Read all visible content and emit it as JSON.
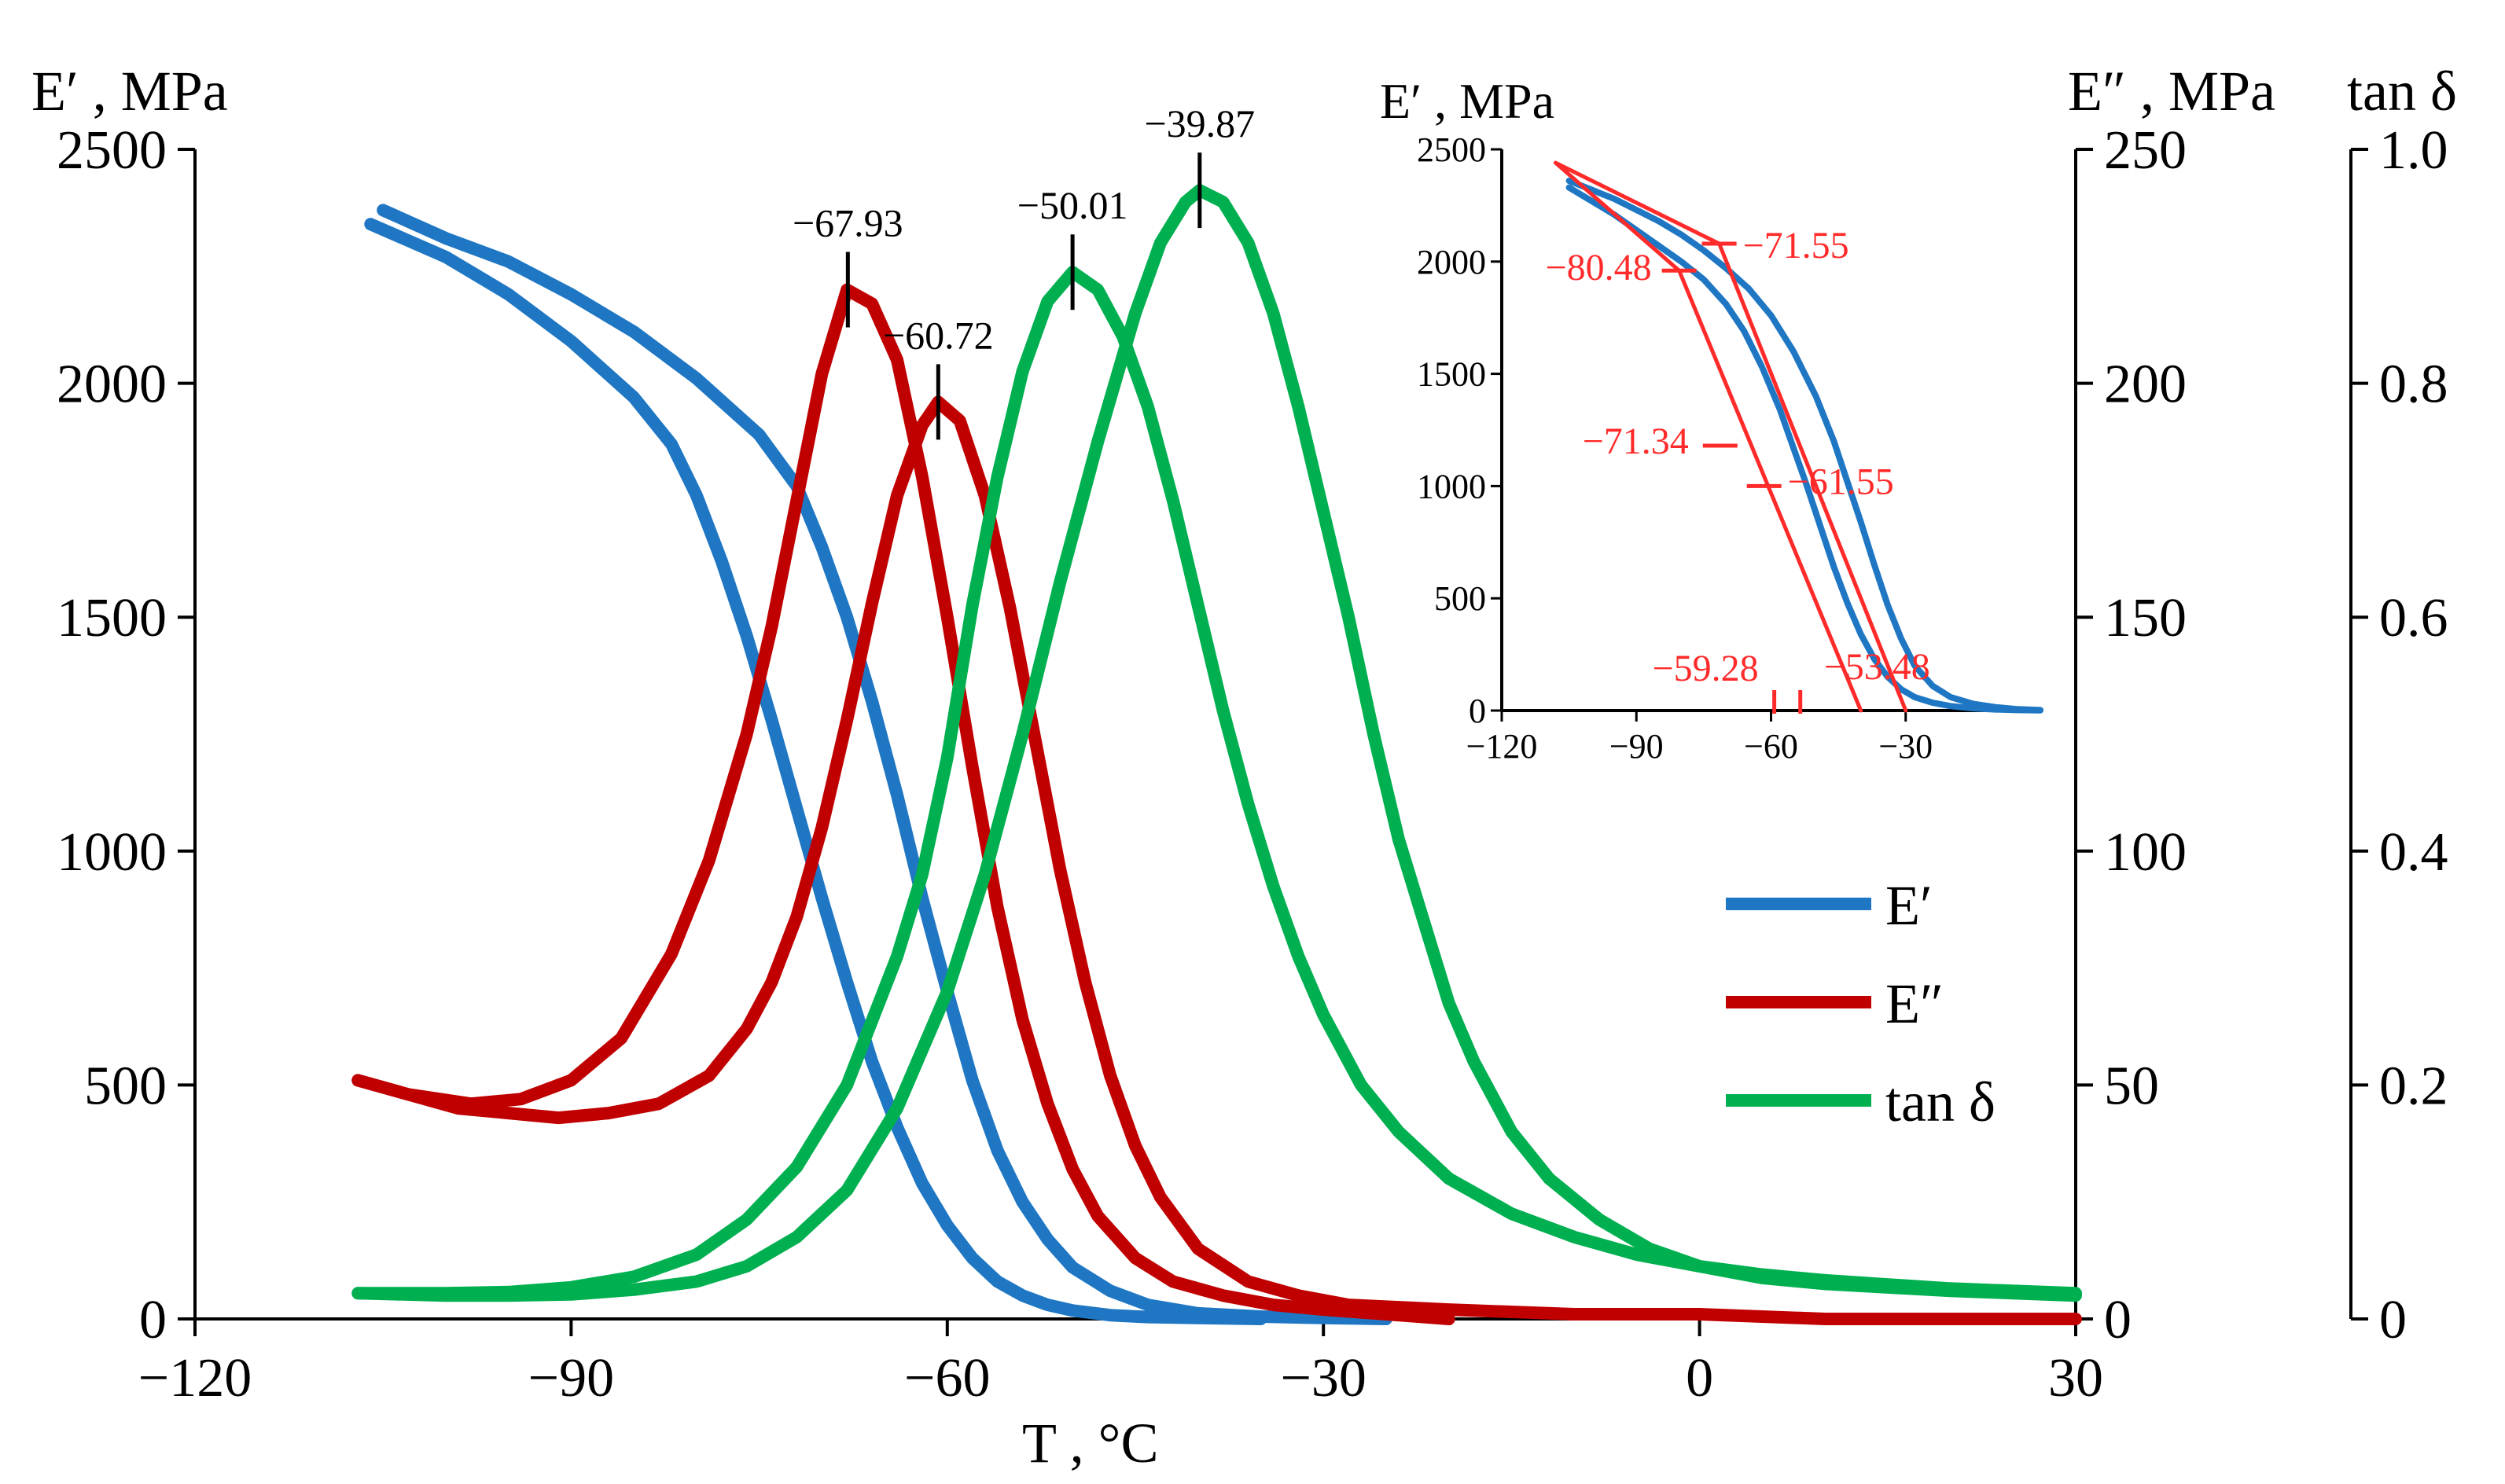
{
  "colors": {
    "E_storage": "#1f77c4",
    "E_loss": "#c00000",
    "tan_delta": "#00b050",
    "annotation": "#ff2a2a",
    "axis": "#000000"
  },
  "chart_data": [
    {
      "type": "line",
      "title": "",
      "xlabel": "T , °C",
      "ylabel_left": "E′ , MPa",
      "ylabel_right1": "E″ , MPa",
      "ylabel_right2": "tan δ",
      "xlim": [
        -120,
        30
      ],
      "xticks": [
        -120,
        -90,
        -60,
        -30,
        0,
        30
      ],
      "xtick_labels": [
        "−120",
        "−90",
        "−60",
        "−30",
        "0",
        "30"
      ],
      "ylim_left": [
        0,
        2500
      ],
      "yticks_left": [
        0,
        500,
        1000,
        1500,
        2000,
        2500
      ],
      "ylim_right1": [
        0,
        250
      ],
      "yticks_right1": [
        0,
        50,
        100,
        150,
        200,
        250
      ],
      "ylim_right2": [
        0,
        1.0
      ],
      "yticks_right2": [
        "0",
        "0.2",
        "0.4",
        "0.6",
        "0.8",
        "1.0"
      ],
      "legend": [
        "E′",
        "E″",
        "tan δ"
      ],
      "legend_position": "center-right",
      "series": [
        {
          "name": "E′ (upper branch)",
          "axis": "left",
          "color_key": "E_storage",
          "x": [
            -105,
            -100,
            -95,
            -90,
            -85,
            -80,
            -75,
            -72,
            -70,
            -68,
            -66,
            -64,
            -62,
            -60,
            -58,
            -56,
            -54,
            -52,
            -50,
            -47,
            -44,
            -40,
            -35,
            -30,
            -25
          ],
          "y": [
            2370,
            2310,
            2260,
            2190,
            2110,
            2010,
            1890,
            1780,
            1650,
            1500,
            1320,
            1120,
            900,
            700,
            510,
            360,
            250,
            170,
            110,
            60,
            30,
            12,
            5,
            2,
            0
          ]
        },
        {
          "name": "E′ (lower branch)",
          "axis": "left",
          "color_key": "E_storage",
          "x": [
            -106,
            -100,
            -95,
            -90,
            -85,
            -82,
            -80,
            -78,
            -76,
            -74,
            -72,
            -70,
            -68,
            -66,
            -64,
            -62,
            -60,
            -58,
            -56,
            -54,
            -52,
            -50,
            -47,
            -44,
            -40,
            -35
          ],
          "y": [
            2340,
            2270,
            2190,
            2090,
            1970,
            1870,
            1760,
            1620,
            1460,
            1280,
            1090,
            900,
            720,
            550,
            410,
            290,
            200,
            130,
            80,
            50,
            30,
            18,
            8,
            4,
            2,
            0
          ]
        },
        {
          "name": "E″ (left peak)",
          "axis": "right1",
          "color_key": "E_loss",
          "x": [
            -107,
            -103,
            -98,
            -94,
            -90,
            -86,
            -82,
            -79,
            -76,
            -74,
            -72,
            -70,
            -68,
            -66,
            -64,
            -62,
            -60,
            -58,
            -56,
            -54,
            -52,
            -50,
            -48,
            -45,
            -42,
            -38,
            -34,
            -30,
            -25,
            -20
          ],
          "y": [
            51,
            48,
            46,
            47,
            51,
            60,
            78,
            98,
            125,
            148,
            175,
            202,
            220,
            217,
            205,
            180,
            150,
            118,
            88,
            64,
            46,
            32,
            22,
            13,
            8,
            5,
            3,
            2,
            1,
            0
          ]
        },
        {
          "name": "E″ (right peak)",
          "axis": "right1",
          "color_key": "E_loss",
          "x": [
            -107,
            -103,
            -99,
            -95,
            -91,
            -87,
            -83,
            -79,
            -76,
            -74,
            -72,
            -70,
            -68,
            -66,
            -64,
            -62,
            -60.72,
            -59,
            -57,
            -55,
            -53,
            -51,
            -49,
            -47,
            -45,
            -43,
            -40,
            -36,
            -32,
            -28,
            -20,
            -10,
            0,
            10,
            20,
            30
          ],
          "y": [
            51,
            48,
            45,
            44,
            43,
            44,
            46,
            52,
            62,
            72,
            86,
            105,
            128,
            153,
            176,
            191,
            196,
            192,
            176,
            152,
            124,
            96,
            72,
            52,
            37,
            26,
            15,
            8,
            5,
            3,
            2,
            1,
            1,
            0,
            0,
            0
          ]
        },
        {
          "name": "tan δ (left peak)",
          "axis": "right2",
          "color_key": "tan_delta",
          "x": [
            -107,
            -100,
            -95,
            -90,
            -85,
            -80,
            -76,
            -72,
            -68,
            -64,
            -62,
            -60,
            -58,
            -56,
            -54,
            -52,
            -50.01,
            -48,
            -46,
            -44,
            -42,
            -40,
            -38,
            -36,
            -34,
            -32,
            -30,
            -27,
            -24,
            -20,
            -15,
            -10,
            -5,
            0,
            5,
            10,
            20,
            30
          ],
          "y": [
            0.022,
            0.022,
            0.023,
            0.027,
            0.036,
            0.055,
            0.085,
            0.13,
            0.2,
            0.31,
            0.38,
            0.48,
            0.61,
            0.72,
            0.81,
            0.87,
            0.895,
            0.88,
            0.84,
            0.78,
            0.7,
            0.61,
            0.52,
            0.44,
            0.37,
            0.31,
            0.26,
            0.2,
            0.16,
            0.12,
            0.09,
            0.07,
            0.055,
            0.045,
            0.038,
            0.033,
            0.026,
            0.022
          ]
        },
        {
          "name": "tan δ (right peak)",
          "axis": "right2",
          "color_key": "tan_delta",
          "x": [
            -107,
            -100,
            -95,
            -90,
            -85,
            -80,
            -76,
            -72,
            -68,
            -64,
            -60,
            -57,
            -54,
            -51,
            -48,
            -45,
            -43,
            -41,
            -39.87,
            -38,
            -36,
            -34,
            -32,
            -30,
            -28,
            -26,
            -24,
            -22,
            -20,
            -18,
            -15,
            -12,
            -8,
            -4,
            0,
            5,
            10,
            20,
            30
          ],
          "y": [
            0.022,
            0.02,
            0.02,
            0.021,
            0.025,
            0.032,
            0.045,
            0.07,
            0.11,
            0.18,
            0.28,
            0.38,
            0.5,
            0.63,
            0.75,
            0.86,
            0.92,
            0.955,
            0.965,
            0.955,
            0.92,
            0.86,
            0.78,
            0.69,
            0.6,
            0.5,
            0.41,
            0.34,
            0.27,
            0.22,
            0.16,
            0.12,
            0.085,
            0.06,
            0.045,
            0.035,
            0.03,
            0.024,
            0.02
          ]
        }
      ],
      "annotations": [
        {
          "x": -67.93,
          "y": 220,
          "axis": "right1",
          "label": "−67.93"
        },
        {
          "x": -60.72,
          "y": 196,
          "axis": "right1",
          "label": "−60.72"
        },
        {
          "x": -50.01,
          "y": 0.895,
          "axis": "right2",
          "label": "−50.01"
        },
        {
          "x": -39.87,
          "y": 0.965,
          "axis": "right2",
          "label": "−39.87"
        }
      ]
    },
    {
      "type": "line",
      "title": "inset",
      "ylabel": "E′ , MPa",
      "xlim": [
        -120,
        0
      ],
      "xticks": [
        -120,
        -90,
        -60,
        -30
      ],
      "xtick_labels": [
        "−120",
        "−90",
        "−60",
        "−30"
      ],
      "ylim": [
        0,
        2500
      ],
      "yticks": [
        0,
        500,
        1000,
        1500,
        2000,
        2500
      ],
      "series": [
        {
          "name": "E′ (upper branch)",
          "color_key": "E_storage",
          "x": [
            -105,
            -100,
            -95,
            -90,
            -85,
            -80,
            -75,
            -70,
            -65,
            -60,
            -55,
            -50,
            -46,
            -43,
            -40,
            -37,
            -34,
            -31,
            -28,
            -24,
            -20,
            -15,
            -10,
            -5,
            0
          ],
          "y": [
            2360,
            2320,
            2280,
            2230,
            2180,
            2120,
            2050,
            1970,
            1880,
            1760,
            1600,
            1400,
            1200,
            1020,
            840,
            650,
            470,
            320,
            200,
            110,
            60,
            30,
            15,
            6,
            2
          ]
        },
        {
          "name": "E′ (lower branch)",
          "color_key": "E_storage",
          "x": [
            -105,
            -100,
            -95,
            -90,
            -85,
            -80,
            -75,
            -70,
            -66,
            -62,
            -58,
            -55,
            -52,
            -49,
            -46,
            -43,
            -40,
            -37,
            -34,
            -31,
            -28,
            -24,
            -20,
            -15,
            -10,
            -5,
            0
          ],
          "y": [
            2330,
            2270,
            2210,
            2140,
            2070,
            2000,
            1920,
            1810,
            1690,
            1530,
            1340,
            1170,
            1000,
            820,
            640,
            480,
            340,
            230,
            150,
            95,
            60,
            35,
            20,
            10,
            5,
            2,
            1
          ]
        },
        {
          "name": "tangent 1",
          "color_key": "annotation",
          "x": [
            -108,
            -71.55
          ],
          "y": [
            2440,
            2080
          ]
        },
        {
          "name": "tangent 2",
          "color_key": "annotation",
          "x": [
            -108,
            -80.48
          ],
          "y": [
            2440,
            1960
          ]
        },
        {
          "name": "tangent 3",
          "color_key": "annotation",
          "x": [
            -71.55,
            -30
          ],
          "y": [
            2080,
            0
          ]
        },
        {
          "name": "tangent 4",
          "color_key": "annotation",
          "x": [
            -80.48,
            -40
          ],
          "y": [
            1960,
            0
          ]
        }
      ],
      "annotations": [
        {
          "x": -71.55,
          "y": 2080,
          "label": "−71.55"
        },
        {
          "x": -80.48,
          "y": 1960,
          "label": "−80.48"
        },
        {
          "x": -71.34,
          "y": 1180,
          "label": "−71.34"
        },
        {
          "x": -61.55,
          "y": 1000,
          "label": "−61.55"
        },
        {
          "x": -59.28,
          "y": 0,
          "label": "−59.28"
        },
        {
          "x": -53.48,
          "y": 0,
          "label": "−53.48"
        }
      ]
    }
  ]
}
